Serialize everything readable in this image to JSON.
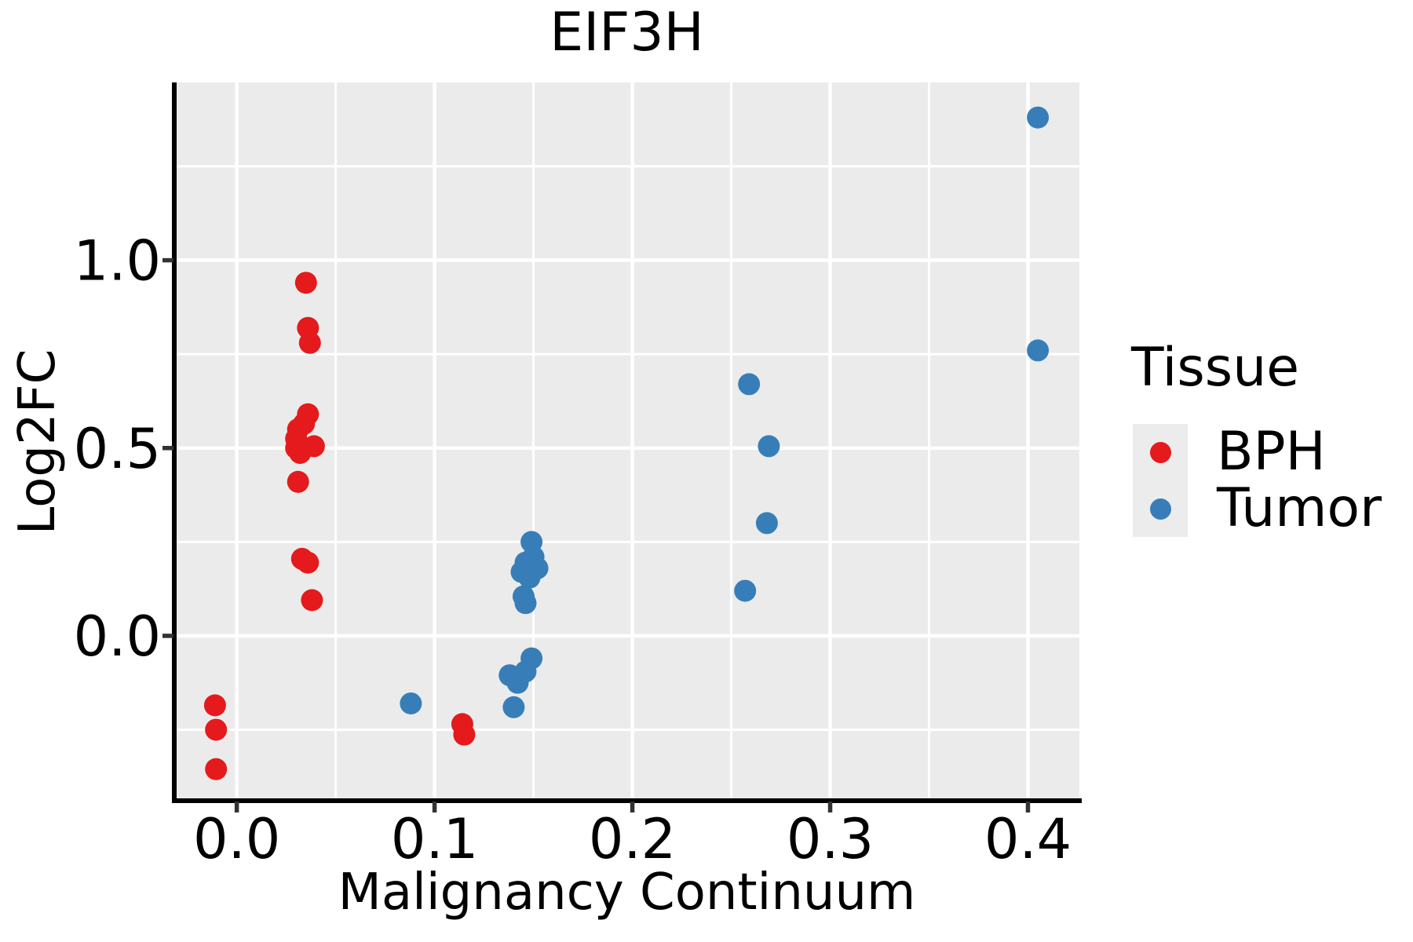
{
  "chart_data": {
    "type": "scatter",
    "title": "EIF3H",
    "xlabel": "Malignancy Continuum",
    "ylabel": "Log2FC",
    "xlim": [
      -0.0316,
      0.426
    ],
    "ylim": [
      -0.439,
      1.4735
    ],
    "x_ticks": [
      0.0,
      0.1,
      0.2,
      0.3,
      0.4
    ],
    "x_tick_labels": [
      "0.0",
      "0.1",
      "0.2",
      "0.3",
      "0.4"
    ],
    "x_minor_ticks": [
      0.05,
      0.15,
      0.25,
      0.35
    ],
    "y_ticks": [
      0.0,
      0.5,
      1.0
    ],
    "y_tick_labels": [
      "0.0",
      "0.5",
      "1.0"
    ],
    "y_minor_ticks": [
      -0.25,
      0.25,
      0.75,
      1.25
    ],
    "grid": true,
    "panel_bg": "#EBEBEB",
    "grid_color": "#FFFFFF",
    "legend_position": "right",
    "series": [
      {
        "name": "BPH",
        "color": "#E41A1C",
        "points": [
          [
            -0.011,
            -0.185
          ],
          [
            -0.0105,
            -0.25
          ],
          [
            -0.0105,
            -0.355
          ],
          [
            0.035,
            0.94
          ],
          [
            0.036,
            0.82
          ],
          [
            0.037,
            0.78
          ],
          [
            0.036,
            0.59
          ],
          [
            0.034,
            0.565
          ],
          [
            0.031,
            0.55
          ],
          [
            0.03,
            0.525
          ],
          [
            0.039,
            0.505
          ],
          [
            0.03,
            0.5
          ],
          [
            0.032,
            0.487
          ],
          [
            0.031,
            0.41
          ],
          [
            0.033,
            0.205
          ],
          [
            0.036,
            0.195
          ],
          [
            0.038,
            0.095
          ],
          [
            0.114,
            -0.235
          ],
          [
            0.115,
            -0.263
          ]
        ]
      },
      {
        "name": "Tumor",
        "color": "#377EB8",
        "points": [
          [
            0.088,
            -0.18
          ],
          [
            0.149,
            0.25
          ],
          [
            0.15,
            0.21
          ],
          [
            0.146,
            0.195
          ],
          [
            0.152,
            0.18
          ],
          [
            0.144,
            0.17
          ],
          [
            0.148,
            0.155
          ],
          [
            0.145,
            0.105
          ],
          [
            0.146,
            0.087
          ],
          [
            0.149,
            -0.06
          ],
          [
            0.146,
            -0.095
          ],
          [
            0.138,
            -0.105
          ],
          [
            0.142,
            -0.125
          ],
          [
            0.14,
            -0.19
          ],
          [
            0.259,
            0.67
          ],
          [
            0.269,
            0.505
          ],
          [
            0.268,
            0.3
          ],
          [
            0.257,
            0.12
          ],
          [
            0.405,
            1.38
          ],
          [
            0.405,
            0.76
          ]
        ]
      }
    ]
  },
  "legend": {
    "title": "Tissue",
    "items": [
      {
        "label": "BPH",
        "color": "#E41A1C"
      },
      {
        "label": "Tumor",
        "color": "#377EB8"
      }
    ]
  }
}
